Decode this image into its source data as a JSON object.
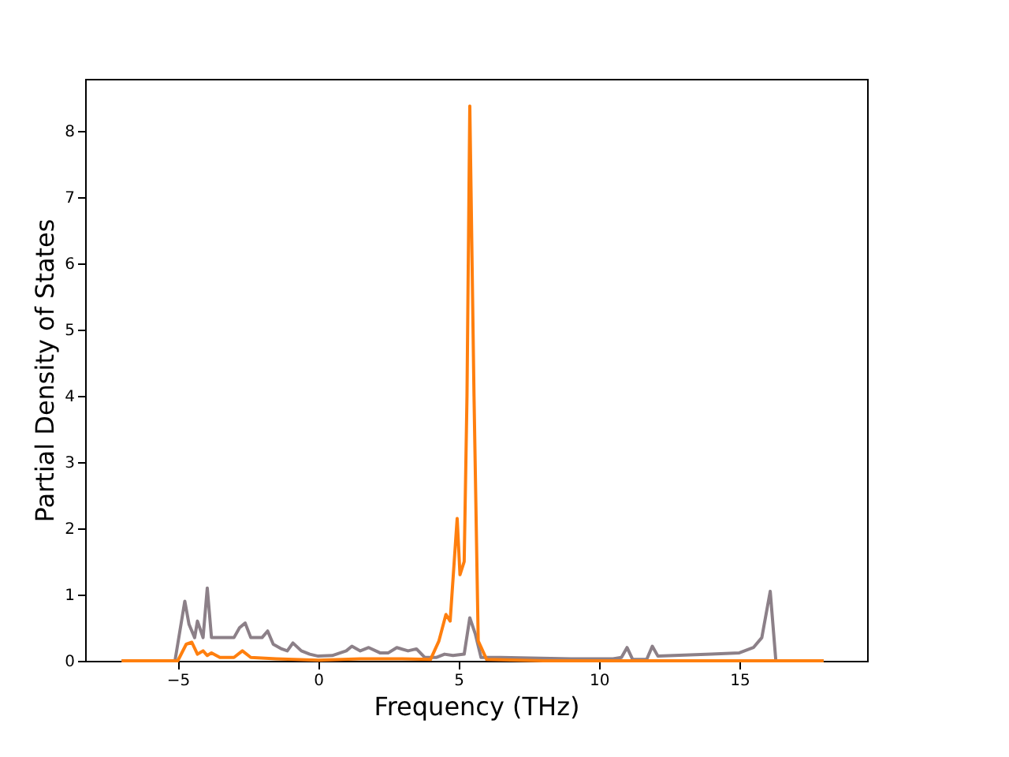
{
  "chart_data": {
    "type": "line",
    "xlabel": "Frequency (THz)",
    "ylabel": "Partial Density of States",
    "xlim": [
      -8.3,
      19.55
    ],
    "ylim": [
      0,
      8.79
    ],
    "xticks": [
      -5,
      0,
      5,
      10,
      15
    ],
    "yticks": [
      0,
      1,
      2,
      3,
      4,
      5,
      6,
      7,
      8
    ],
    "series": [
      {
        "color": "#8c8088",
        "x": [
          -7,
          -5.1,
          -4.75,
          -4.6,
          -4.4,
          -4.3,
          -4.1,
          -3.95,
          -3.8,
          -3.0,
          -2.8,
          -2.6,
          -2.4,
          -2.0,
          -1.8,
          -1.6,
          -1.3,
          -1.1,
          -0.9,
          -0.6,
          -0.3,
          0,
          0.5,
          1.0,
          1.2,
          1.5,
          1.8,
          2.2,
          2.5,
          2.8,
          3.2,
          3.5,
          3.8,
          4.2,
          4.5,
          4.8,
          5.2,
          5.4,
          5.6,
          5.8,
          6.5,
          9,
          10.5,
          10.8,
          11.0,
          11.2,
          11.7,
          11.9,
          12.1,
          14,
          15,
          15.5,
          15.8,
          16.1,
          16.3,
          18
        ],
        "values": [
          0,
          0,
          0.9,
          0.55,
          0.35,
          0.6,
          0.35,
          1.1,
          0.35,
          0.35,
          0.5,
          0.57,
          0.35,
          0.35,
          0.45,
          0.25,
          0.18,
          0.15,
          0.27,
          0.15,
          0.1,
          0.07,
          0.08,
          0.15,
          0.22,
          0.15,
          0.2,
          0.12,
          0.12,
          0.2,
          0.15,
          0.18,
          0.05,
          0.05,
          0.1,
          0.08,
          0.1,
          0.65,
          0.4,
          0.05,
          0.05,
          0.03,
          0.03,
          0.05,
          0.2,
          0.02,
          0.02,
          0.22,
          0.07,
          0.1,
          0.12,
          0.2,
          0.35,
          1.05,
          0,
          0
        ]
      },
      {
        "color": "#ff7f0e",
        "x": [
          -7,
          -5.0,
          -4.7,
          -4.5,
          -4.3,
          -4.1,
          -3.95,
          -3.8,
          -3.5,
          -3.0,
          -2.7,
          -2.4,
          -1.5,
          0,
          1.5,
          3,
          4,
          4.3,
          4.55,
          4.7,
          4.95,
          5.05,
          5.2,
          5.3,
          5.4,
          5.55,
          5.7,
          6.0,
          8,
          18
        ],
        "values": [
          0,
          0,
          0.25,
          0.28,
          0.1,
          0.15,
          0.08,
          0.12,
          0.05,
          0.05,
          0.15,
          0.05,
          0.03,
          0.01,
          0.03,
          0.03,
          0.02,
          0.3,
          0.7,
          0.6,
          2.15,
          1.3,
          1.5,
          4,
          8.38,
          4,
          0.3,
          0.02,
          0,
          0
        ]
      }
    ]
  }
}
